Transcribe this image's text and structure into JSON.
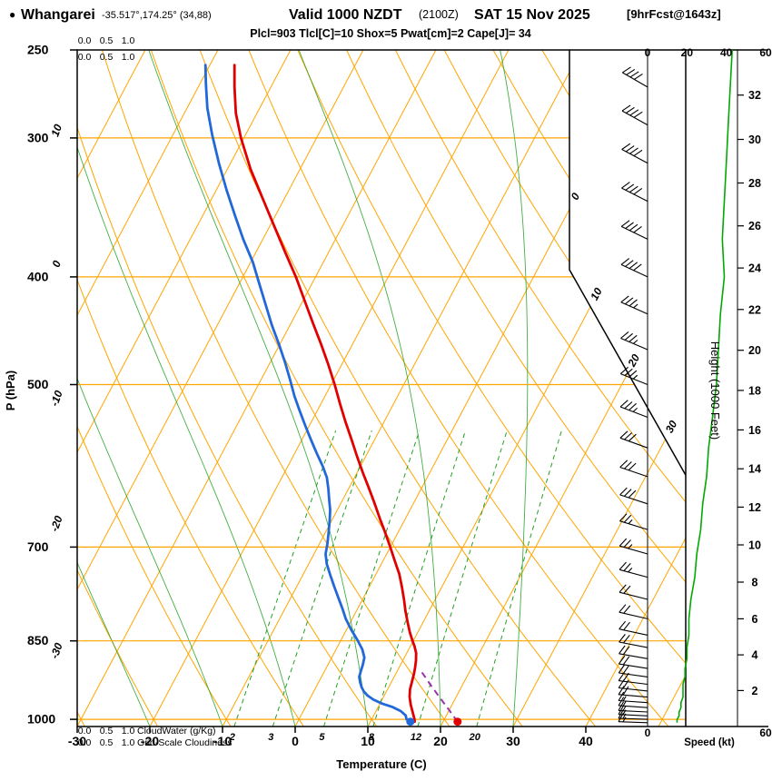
{
  "title": {
    "bullet": "●",
    "station": "Whangarei",
    "coords": "-35.517°,174.25° (34,88)",
    "valid": "Valid 1000 NZDT",
    "valid_zulu": "(2100Z)",
    "date": "SAT 15 Nov 2025",
    "fcst": "[9hrFcst@1643z]"
  },
  "params_line": "Plcl=903 Tlcl[C]=10 Shox=5 Pwat[cm]=2 Cape[J]= 34",
  "axes": {
    "pressure_label": "P (hPa)",
    "pressure_ticks": [
      250,
      300,
      400,
      500,
      700,
      850,
      1000
    ],
    "temp_label": "Temperature (C)",
    "temp_ticks": [
      -30,
      -20,
      -10,
      0,
      10,
      20,
      30,
      40
    ],
    "height_label": "Height (1000 Feet)",
    "height_ticks": [
      2,
      4,
      6,
      8,
      10,
      12,
      14,
      16,
      18,
      20,
      22,
      24,
      26,
      28,
      30,
      32
    ],
    "speed_label": "Speed (kt)",
    "speed_ticks": [
      0,
      20,
      40,
      60
    ],
    "isotherm_edge_labels": [
      0,
      10,
      20,
      30
    ],
    "dry_adiabat_edge_labels": [
      10,
      0,
      -10,
      -20,
      -30
    ],
    "mixing_ratio_labels": [
      2,
      3,
      5,
      8,
      12,
      20
    ],
    "cloud_scale_ticks": [
      "0.0",
      "0.5",
      "1.0"
    ],
    "cloudwater_label": "CloudWater (g/Kg)",
    "cloudiness_label": "Grid-Scale Cloudiness"
  },
  "colors": {
    "grid_orange": "#ffa500",
    "line_green": "#22a022",
    "speed_green": "#00aa00",
    "temp_red": "#e00000",
    "dewpoint_blue": "#2368d9",
    "parcel_purple": "#9933aa",
    "params_magenta": "#c2185b",
    "adiabat_label_orange": "#cc8800",
    "isotherm_label_orange": "#ee9900"
  },
  "chart_data": {
    "type": "skewt",
    "pressure_range_hpa": [
      250,
      1015
    ],
    "temp_axis_range_c": [
      -30,
      40
    ],
    "speed_axis_range_kt": [
      0,
      60
    ],
    "temperature_profile": {
      "p_hpa": [
        1005,
        1000,
        985,
        970,
        955,
        940,
        925,
        910,
        898,
        885,
        872,
        860,
        850,
        835,
        820,
        800,
        780,
        760,
        740,
        720,
        700,
        680,
        660,
        640,
        620,
        600,
        580,
        560,
        540,
        520,
        500,
        480,
        460,
        440,
        420,
        400,
        380,
        360,
        340,
        320,
        300,
        285,
        270,
        258
      ],
      "t_c": [
        16.1,
        15.9,
        15.1,
        14.3,
        13.6,
        13.1,
        12.8,
        12.5,
        12.2,
        11.8,
        11.3,
        10.6,
        9.9,
        8.9,
        8.0,
        6.8,
        5.7,
        4.5,
        3.2,
        1.6,
        0.0,
        -1.7,
        -3.5,
        -5.3,
        -7.2,
        -9.2,
        -11.2,
        -13.2,
        -15.3,
        -17.4,
        -19.5,
        -21.8,
        -24.3,
        -27.0,
        -29.8,
        -32.7,
        -36.0,
        -39.4,
        -43.0,
        -46.8,
        -50.4,
        -52.9,
        -55.0,
        -56.6
      ]
    },
    "dewpoint_profile": {
      "p_hpa": [
        1000,
        992,
        983,
        975,
        968,
        960,
        952,
        944,
        936,
        926,
        916,
        905,
        893,
        880,
        865,
        848,
        830,
        812,
        795,
        778,
        760,
        742,
        725,
        710,
        695,
        678,
        662,
        648,
        634,
        620,
        606,
        592,
        576,
        560,
        544,
        528,
        512,
        495,
        478,
        460,
        442,
        424,
        406,
        388,
        370,
        352,
        334,
        316,
        298,
        282,
        268,
        258
      ],
      "t_c": [
        14.8,
        14.4,
        13.4,
        12.0,
        10.3,
        8.8,
        7.7,
        6.9,
        6.3,
        5.7,
        5.2,
        5.0,
        4.8,
        4.5,
        3.6,
        2.2,
        0.6,
        -0.9,
        -2.1,
        -3.4,
        -4.8,
        -6.2,
        -7.5,
        -8.4,
        -8.9,
        -9.6,
        -10.3,
        -11.0,
        -11.9,
        -12.8,
        -13.8,
        -15.2,
        -17.0,
        -18.8,
        -20.6,
        -22.4,
        -24.2,
        -26.0,
        -27.9,
        -30.1,
        -32.5,
        -34.8,
        -37.2,
        -39.7,
        -42.7,
        -45.6,
        -48.6,
        -51.6,
        -54.6,
        -57.2,
        -59.2,
        -60.6
      ]
    },
    "parcel_path": {
      "p_hpa": [
        1005,
        980,
        955,
        930,
        915,
        903
      ],
      "t_c": [
        22.0,
        19.9,
        17.7,
        15.5,
        14.2,
        13.1
      ]
    },
    "surface_temp_marker": {
      "p_hpa": 1005,
      "t_c": 22.0
    },
    "surface_dewpoint_marker": {
      "p_hpa": 1005,
      "t_c": 15.5
    },
    "wind_profile": {
      "columns": [
        "p_hpa",
        "dir_deg",
        "speed_kt"
      ],
      "rows": [
        [
          250,
          300,
          43
        ],
        [
          270,
          300,
          42
        ],
        [
          292,
          299,
          41
        ],
        [
          316,
          298,
          40
        ],
        [
          342,
          297,
          39
        ],
        [
          370,
          296,
          38
        ],
        [
          400,
          295,
          39
        ],
        [
          432,
          294,
          37
        ],
        [
          465,
          293,
          36
        ],
        [
          500,
          292,
          35
        ],
        [
          535,
          291,
          33
        ],
        [
          570,
          290,
          31
        ],
        [
          605,
          289,
          30
        ],
        [
          640,
          288,
          28
        ],
        [
          675,
          287,
          27
        ],
        [
          710,
          286,
          25
        ],
        [
          745,
          285,
          24
        ],
        [
          780,
          284,
          22
        ],
        [
          812,
          283,
          21
        ],
        [
          840,
          282,
          21
        ],
        [
          862,
          281,
          20
        ],
        [
          882,
          280,
          20
        ],
        [
          900,
          279,
          19
        ],
        [
          916,
          278,
          19
        ],
        [
          930,
          277,
          18
        ],
        [
          943,
          276,
          18
        ],
        [
          955,
          275,
          18
        ],
        [
          966,
          274,
          17
        ],
        [
          976,
          274,
          17
        ],
        [
          985,
          273,
          16
        ],
        [
          993,
          273,
          16
        ],
        [
          1000,
          272,
          15
        ],
        [
          1007,
          272,
          15
        ]
      ]
    },
    "grid": {
      "isotherms_c": {
        "start": -80,
        "end": 50,
        "step": 10
      },
      "dry_adiabats_c": {
        "start": -30,
        "end": 110,
        "step": 10
      },
      "moist_adiabats_c": {
        "start": -60,
        "end": 30,
        "step": 10
      },
      "mixing_ratio_gkg": [
        2,
        3,
        5,
        8,
        12,
        20
      ]
    }
  }
}
